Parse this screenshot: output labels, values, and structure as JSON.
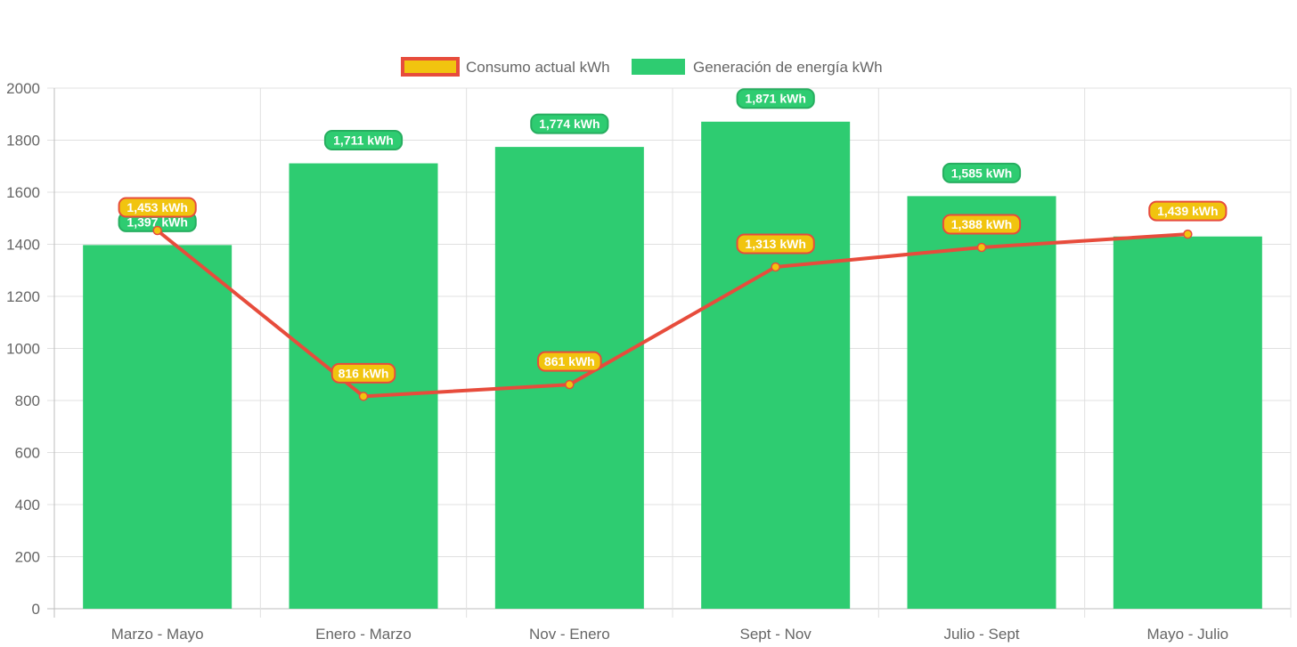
{
  "chart_data": {
    "type": "bar",
    "categories": [
      "Marzo - Mayo",
      "Enero - Marzo",
      "Nov - Enero",
      "Sept - Nov",
      "Julio - Sept",
      "Mayo - Julio"
    ],
    "series": [
      {
        "name": "Consumo actual kWh",
        "type": "line",
        "values": [
          1453,
          816,
          861,
          1313,
          1388,
          1439
        ],
        "labels": [
          "1,453 kWh",
          "816 kWh",
          "861 kWh",
          "1,313 kWh",
          "1,388 kWh",
          "1,439 kWh"
        ],
        "line_color": "#e74c3c",
        "fill_color": "#f1c40f"
      },
      {
        "name": "Generación de energía kWh",
        "type": "bar",
        "values": [
          1397,
          1711,
          1774,
          1871,
          1585,
          1430
        ],
        "labels": [
          "1,397 kWh",
          "1,711 kWh",
          "1,774 kWh",
          "1,871 kWh",
          "1,585 kWh",
          ""
        ],
        "color": "#2ecc71",
        "label_border": "#27ae60"
      }
    ],
    "yticks": [
      "0",
      "200",
      "400",
      "600",
      "800",
      "1000",
      "1200",
      "1400",
      "1600",
      "1800",
      "2000"
    ],
    "ylim": [
      0,
      2000
    ],
    "grid": true,
    "legend_position": "top-center"
  }
}
